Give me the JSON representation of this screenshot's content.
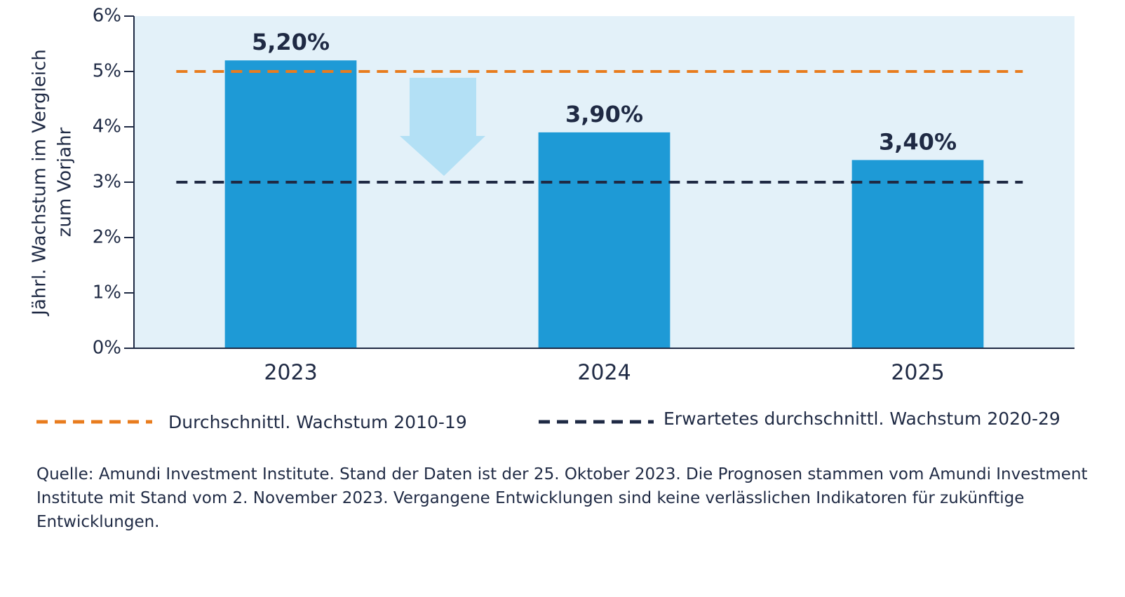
{
  "chart_data": {
    "type": "bar",
    "ylabel": [
      "Jährl. Wachstum im Vergleich",
      "zum Vorjahr"
    ],
    "categories": [
      "2023",
      "2024",
      "2025"
    ],
    "values": [
      5.2,
      3.9,
      3.4
    ],
    "value_labels": [
      "5,20%",
      "3,90%",
      "3,40%"
    ],
    "color": "#1e9ad6",
    "ylim": [
      0,
      6
    ],
    "yticks": [
      {
        "value": 0,
        "label": "0%"
      },
      {
        "value": 1,
        "label": "1%"
      },
      {
        "value": 2,
        "label": "2%"
      },
      {
        "value": 3,
        "label": "3%"
      },
      {
        "value": 4,
        "label": "4%"
      },
      {
        "value": 5,
        "label": "5%"
      },
      {
        "value": 6,
        "label": "6%"
      }
    ],
    "reference_lines": [
      {
        "name": "Durchschnittl. Wachstum 2010-19",
        "color": "#e87c1e",
        "value": 5
      },
      {
        "name": "Erwartetes durchschnittl. Wachstum 2020-29",
        "color": "#1f2a44",
        "value": 3
      }
    ],
    "source": "Quelle: Amundi Investment Institute. Stand der Daten ist der 25. Oktober 2023. Die Prognosen stammen vom Amundi Investment Institute mit Stand vom 2. November 2023. Vergangene Entwicklungen sind keine verlässlichen Indikatoren für zukünftige Entwicklungen."
  }
}
